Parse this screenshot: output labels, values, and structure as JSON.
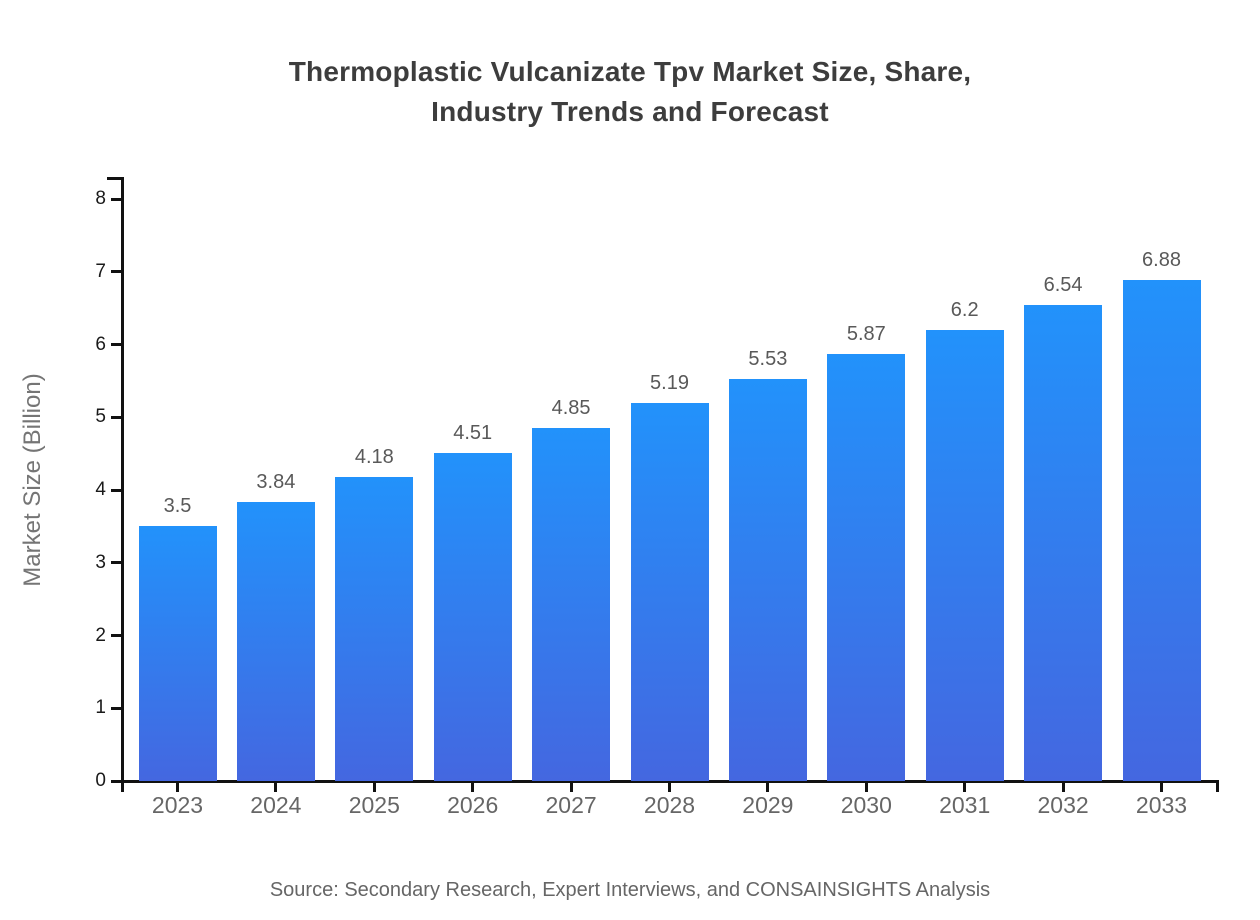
{
  "header": {
    "title_lines": [
      "Thermoplastic Vulcanizate Tpv Market Size, Share,",
      "Industry Trends and Forecast"
    ]
  },
  "footer": {
    "source": "Source: Secondary Research, Expert Interviews, and CONSAINSIGHTS Analysis"
  },
  "chart_data": {
    "type": "bar",
    "title": "Thermoplastic Vulcanizate Tpv Market Size, Share, Industry Trends and Forecast",
    "categories": [
      "2023",
      "2024",
      "2025",
      "2026",
      "2027",
      "2028",
      "2029",
      "2030",
      "2031",
      "2032",
      "2033"
    ],
    "values": [
      3.5,
      3.84,
      4.18,
      4.51,
      4.85,
      5.19,
      5.53,
      5.87,
      6.2,
      6.54,
      6.88
    ],
    "xlabel": "",
    "ylabel": "Market Size (Billion)",
    "ylim": [
      0,
      8
    ],
    "yticks": [
      0,
      1,
      2,
      3,
      4,
      5,
      6,
      7,
      8
    ],
    "grid": false,
    "legend": false,
    "data_labels_shown": true,
    "colors": {
      "bar_gradient_top": "#2292fb",
      "bar_gradient_bottom": "#4467e0",
      "axis": "#111111",
      "ytick_label": "#1a1a1a",
      "xtick_label": "#666666",
      "value_label": "#595959",
      "title": "#3d3d3d",
      "ylabel": "#757575",
      "source": "#666666",
      "background": "#ffffff"
    }
  }
}
